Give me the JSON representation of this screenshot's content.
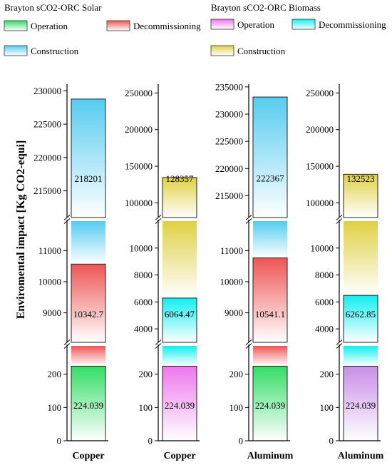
{
  "chart_data": {
    "type": "bar",
    "subtype": "stacked-broken-axis",
    "ylabel": "Enviromental impact [Kg CO2-equi]",
    "groups": [
      {
        "title": "Brayton sCO2-ORC Solar",
        "legend": [
          {
            "label": "Operation",
            "color": "#33dd66"
          },
          {
            "label": "Decommissioning",
            "color": "#ee5555"
          },
          {
            "label": "Construction",
            "color": "#55ccf0"
          }
        ]
      },
      {
        "title": "Brayton sCO2-ORC Biomass",
        "legend": [
          {
            "label": "Operation",
            "color": "#ee77ee"
          },
          {
            "label": "Decommissioning",
            "color": "#11eef0"
          },
          {
            "label": "Construction",
            "color": "#e0d044"
          }
        ]
      }
    ],
    "bars": [
      {
        "category": "Copper",
        "group": "Solar",
        "operation": 224.039,
        "decommissioning": 10342.7,
        "construction": 218201,
        "colors": [
          "#33dd66",
          "#ee5555",
          "#55ccf0"
        ],
        "labels": [
          "224.039",
          "10342.7",
          "218201"
        ],
        "ticks": [
          [
            "0",
            "100",
            "200"
          ],
          [
            "9000",
            "10000",
            "11000"
          ],
          [
            "215000",
            "220000",
            "225000",
            "230000"
          ]
        ]
      },
      {
        "category": "Copper",
        "group": "Biomass",
        "operation": 224.039,
        "decommissioning": 6064.47,
        "construction": 128357,
        "colors": [
          "#ee77ee",
          "#11eef0",
          "#e0d044"
        ],
        "labels": [
          "224.039",
          "6064.47",
          "128357"
        ],
        "ticks": [
          [
            "0",
            "100",
            "200"
          ],
          [
            "4000",
            "6000",
            "8000",
            "10000"
          ],
          [
            "100000",
            "150000",
            "200000",
            "250000"
          ]
        ]
      },
      {
        "category": "Aluminum",
        "group": "Solar",
        "operation": 224.039,
        "decommissioning": 10541.1,
        "construction": 222367,
        "colors": [
          "#33dd66",
          "#ee5555",
          "#55ccf0"
        ],
        "labels": [
          "224.039",
          "10541.1",
          "222367"
        ],
        "ticks": [
          [
            "0",
            "100",
            "200"
          ],
          [
            "9000",
            "10000",
            "11000"
          ],
          [
            "215000",
            "220000",
            "225000",
            "230000",
            "235000"
          ]
        ]
      },
      {
        "category": "Aluminum",
        "group": "Biomass",
        "operation": 224.039,
        "decommissioning": 6262.85,
        "construction": 132523,
        "colors": [
          "#c98ee8",
          "#11eef0",
          "#e0d044"
        ],
        "labels": [
          "224.039",
          "6262.85",
          "132523"
        ],
        "ticks": [
          [
            "0",
            "100",
            "200"
          ],
          [
            "4000",
            "6000",
            "8000",
            "10000"
          ],
          [
            "100000",
            "150000",
            "200000",
            "250000"
          ]
        ]
      }
    ]
  }
}
